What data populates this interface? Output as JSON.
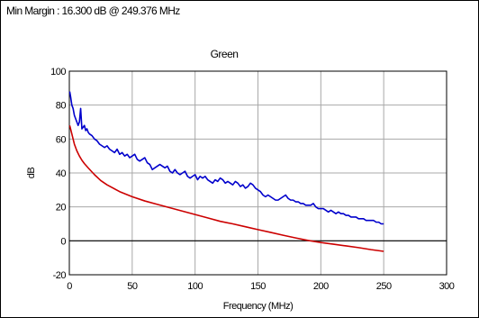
{
  "header": {
    "text": "Min Margin : 16.300 dB @ 249.376 MHz"
  },
  "chart_data": {
    "type": "line",
    "title": "Green",
    "xlabel": "Frequency (MHz)",
    "ylabel": "dB",
    "xlim": [
      0,
      300
    ],
    "ylim": [
      -20,
      100
    ],
    "xticks": [
      0,
      50,
      100,
      150,
      200,
      250,
      300
    ],
    "yticks": [
      -20,
      0,
      20,
      40,
      60,
      80,
      100
    ],
    "grid": true,
    "legend": "none",
    "reference_line": {
      "y": 0,
      "color": "#000000"
    },
    "series": [
      {
        "color": "#0000cc",
        "x": [
          0.3,
          1,
          2,
          3,
          4,
          5,
          6,
          7,
          8,
          9,
          10,
          11,
          12,
          13,
          14,
          15,
          16,
          18,
          20,
          22,
          24,
          26,
          28,
          30,
          32,
          34,
          36,
          38,
          40,
          42,
          44,
          46,
          48,
          50,
          52,
          54,
          56,
          58,
          60,
          62,
          64,
          66,
          68,
          70,
          72,
          74,
          76,
          78,
          80,
          82,
          84,
          86,
          88,
          90,
          92,
          94,
          96,
          98,
          100,
          102,
          104,
          106,
          108,
          110,
          112,
          114,
          116,
          118,
          120,
          122,
          124,
          126,
          128,
          130,
          132,
          134,
          136,
          138,
          140,
          142,
          144,
          146,
          148,
          150,
          152,
          154,
          156,
          158,
          160,
          162,
          164,
          166,
          168,
          170,
          172,
          174,
          176,
          178,
          180,
          182,
          184,
          186,
          188,
          190,
          192,
          194,
          196,
          198,
          200,
          202,
          204,
          206,
          208,
          210,
          212,
          214,
          216,
          218,
          220,
          222,
          224,
          226,
          228,
          230,
          232,
          234,
          236,
          238,
          240,
          242,
          244,
          246,
          248,
          250
        ],
        "y": [
          88,
          85,
          80,
          78,
          74,
          72,
          70,
          68,
          70,
          78,
          66,
          67,
          68,
          65,
          66,
          64,
          63,
          62,
          60,
          59,
          57,
          56,
          55,
          56,
          54,
          53,
          52,
          54,
          51,
          52,
          50,
          51,
          49,
          50,
          51,
          48,
          47,
          48,
          49,
          46,
          45,
          42,
          43,
          44,
          45,
          44,
          43,
          44,
          41,
          40,
          42,
          40,
          39,
          40,
          41,
          38,
          37,
          38,
          39,
          36,
          38,
          37,
          38,
          36,
          35,
          34,
          36,
          35,
          37,
          36,
          34,
          35,
          34,
          33,
          35,
          34,
          32,
          33,
          31,
          32,
          34,
          33,
          31,
          30,
          29,
          27,
          26,
          27,
          26,
          25,
          24,
          24,
          25,
          26,
          27,
          25,
          24,
          24,
          23,
          23,
          22,
          22,
          21,
          21,
          21,
          22,
          20,
          19,
          19,
          19,
          18,
          17,
          18,
          17,
          16,
          17,
          16,
          16,
          15,
          15,
          14,
          14,
          14,
          13,
          13,
          13,
          12,
          12,
          12,
          12,
          11,
          11,
          10,
          10
        ]
      },
      {
        "color": "#cc0000",
        "x": [
          0.3,
          1,
          2,
          3,
          4,
          5,
          6,
          8,
          10,
          12,
          15,
          20,
          25,
          30,
          40,
          50,
          60,
          70,
          80,
          90,
          100,
          110,
          120,
          130,
          140,
          150,
          160,
          170,
          180,
          190,
          200,
          210,
          220,
          230,
          240,
          250
        ],
        "y": [
          68,
          66,
          63,
          60,
          57,
          55,
          53,
          50,
          47.5,
          45.5,
          43,
          39,
          35.5,
          33,
          29,
          26,
          23.5,
          21.5,
          19.5,
          17.5,
          15.5,
          13.5,
          11.5,
          10,
          8.3,
          6.6,
          5.0,
          3.3,
          1.7,
          0.2,
          -1.0,
          -2.0,
          -3.0,
          -4.0,
          -5.2,
          -6.2
        ]
      }
    ]
  }
}
